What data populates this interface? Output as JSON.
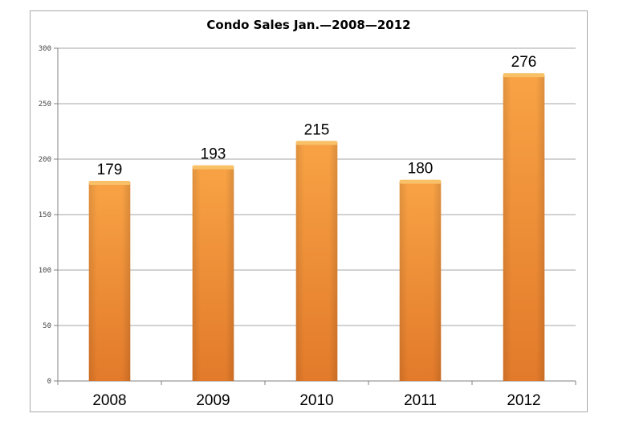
{
  "chart_data": {
    "type": "bar",
    "title": "Condo Sales Jan.—2008—2012",
    "xlabel": "",
    "ylabel": "",
    "categories": [
      "2008",
      "2009",
      "2010",
      "2011",
      "2012"
    ],
    "values": [
      179,
      193,
      215,
      180,
      276
    ],
    "data_labels": [
      "179",
      "193",
      "215",
      "180",
      "276"
    ],
    "ylim": [
      0,
      300
    ],
    "yticks": [
      0,
      50,
      100,
      150,
      200,
      250,
      300
    ],
    "ytick_labels": [
      "0",
      "50",
      "100",
      "150",
      "200",
      "250",
      "300"
    ],
    "grid": true,
    "legend": "none",
    "bar_color": "#f39337",
    "bar_top_color": "#f8c168",
    "bar_bottom_color": "#e6812b",
    "gridline_color": "#a6a6a6"
  }
}
